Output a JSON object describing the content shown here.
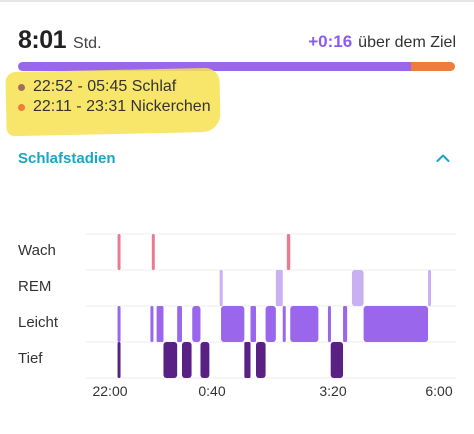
{
  "summary": {
    "duration_value": "8:01",
    "duration_unit": "Std.",
    "goal_diff": "+0:16",
    "goal_text": "über dem Ziel",
    "progress_fraction": 0.9,
    "colors": {
      "sleep": "#9a66ec",
      "nap": "#f07b3a",
      "highlight": "#f7e250"
    }
  },
  "entries": [
    {
      "label": "22:52 - 05:45 Schlaf",
      "dot_color": "#a0705a"
    },
    {
      "label": "22:11 - 23:31 Nickerchen",
      "dot_color": "#f07b3a"
    }
  ],
  "section": {
    "title": "Schlafstadien",
    "toggle_icon": "chevron-up-icon"
  },
  "chart_data": {
    "type": "timeline",
    "stages": [
      "Wach",
      "REM",
      "Leicht",
      "Tief"
    ],
    "x_tick_labels": [
      "22:00",
      "0:40",
      "3:20",
      "6:00"
    ],
    "stage_colors": {
      "Wach": "#e97a92",
      "REM": "#c9b0f2",
      "Leicht": "#9a66ec",
      "Tief": "#5a2184"
    },
    "segments": [
      {
        "stage": "Leicht",
        "start": "22:11",
        "end": "22:14"
      },
      {
        "stage": "Wach",
        "start": "22:11",
        "end": "22:14"
      },
      {
        "stage": "Tief",
        "start": "22:11",
        "end": "22:14"
      },
      {
        "stage": "Wach",
        "start": "23:01",
        "end": "23:04"
      },
      {
        "stage": "Leicht",
        "start": "22:59",
        "end": "23:01"
      },
      {
        "stage": "Leicht",
        "start": "23:08",
        "end": "23:18"
      },
      {
        "stage": "Tief",
        "start": "23:18",
        "end": "23:38"
      },
      {
        "stage": "Leicht",
        "start": "23:38",
        "end": "23:45"
      },
      {
        "stage": "Tief",
        "start": "23:45",
        "end": "23:59"
      },
      {
        "stage": "Leicht",
        "start": "00:00",
        "end": "00:12"
      },
      {
        "stage": "Tief",
        "start": "00:12",
        "end": "00:25"
      },
      {
        "stage": "REM",
        "start": "00:40",
        "end": "00:42"
      },
      {
        "stage": "Leicht",
        "start": "00:42",
        "end": "01:16"
      },
      {
        "stage": "Tief",
        "start": "01:16",
        "end": "01:25"
      },
      {
        "stage": "Leicht",
        "start": "01:25",
        "end": "01:33"
      },
      {
        "stage": "Tief",
        "start": "01:33",
        "end": "01:47"
      },
      {
        "stage": "Leicht",
        "start": "01:47",
        "end": "02:02"
      },
      {
        "stage": "REM",
        "start": "02:02",
        "end": "02:12"
      },
      {
        "stage": "Leicht",
        "start": "02:12",
        "end": "02:14"
      },
      {
        "stage": "Wach",
        "start": "02:18",
        "end": "02:23"
      },
      {
        "stage": "Leicht",
        "start": "02:23",
        "end": "03:04"
      },
      {
        "stage": "Leicht",
        "start": "03:18",
        "end": "03:22"
      },
      {
        "stage": "Tief",
        "start": "03:22",
        "end": "03:40"
      },
      {
        "stage": "Leicht",
        "start": "03:40",
        "end": "03:46"
      },
      {
        "stage": "REM",
        "start": "03:53",
        "end": "04:10"
      },
      {
        "stage": "Leicht",
        "start": "04:10",
        "end": "05:44"
      },
      {
        "stage": "REM",
        "start": "05:44",
        "end": "05:47"
      }
    ]
  }
}
